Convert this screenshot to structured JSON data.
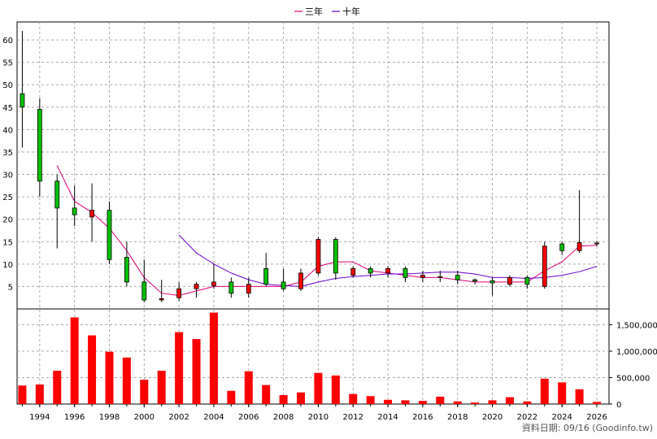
{
  "chart_data": {
    "type": "candlestick",
    "legend": [
      {
        "label": "三年",
        "color": "#e0007a"
      },
      {
        "label": "十年",
        "color": "#6a00d0"
      }
    ],
    "price_axis": {
      "ylim": [
        0,
        64
      ],
      "ticks": [
        5,
        10,
        15,
        20,
        25,
        30,
        35,
        40,
        45,
        50,
        55,
        60
      ]
    },
    "volume_axis": {
      "ylim": [
        0,
        1800000
      ],
      "ticks": [
        0,
        500000,
        1000000,
        1500000
      ],
      "tick_labels": [
        "0",
        "500,000",
        "1,000,000",
        "1,500,000"
      ]
    },
    "x_axis": {
      "range": [
        1992.7,
        2026.7
      ],
      "ticks": [
        1994,
        1996,
        1998,
        2000,
        2002,
        2004,
        2006,
        2008,
        2010,
        2012,
        2014,
        2016,
        2018,
        2020,
        2022,
        2024,
        2026
      ]
    },
    "up_color": "#ff0000",
    "down_color": "#00c000",
    "candles": [
      {
        "year": 1993,
        "open": 48,
        "close": 45,
        "high": 62,
        "low": 36
      },
      {
        "year": 1994,
        "open": 44.5,
        "close": 28.5,
        "high": 47,
        "low": 25
      },
      {
        "year": 1995,
        "open": 28.5,
        "close": 22.5,
        "high": 30,
        "low": 13.5
      },
      {
        "year": 1996,
        "open": 22.5,
        "close": 21,
        "high": 27.5,
        "low": 18.5
      },
      {
        "year": 1997,
        "open": 20.5,
        "close": 22,
        "high": 28,
        "low": 15
      },
      {
        "year": 1998,
        "open": 22,
        "close": 11,
        "high": 24,
        "low": 10
      },
      {
        "year": 1999,
        "open": 11.5,
        "close": 6,
        "high": 15,
        "low": 5
      },
      {
        "year": 2000,
        "open": 6,
        "close": 2,
        "high": 11,
        "low": 1.5
      },
      {
        "year": 2001,
        "open": 2,
        "close": 2.3,
        "high": 6.5,
        "low": 1.5
      },
      {
        "year": 2002,
        "open": 2.5,
        "close": 4.5,
        "high": 6,
        "low": 1.8
      },
      {
        "year": 2003,
        "open": 4.5,
        "close": 5.5,
        "high": 6,
        "low": 2.5
      },
      {
        "year": 2004,
        "open": 5.2,
        "close": 6,
        "high": 10,
        "low": 4.5
      },
      {
        "year": 2005,
        "open": 6,
        "close": 3.5,
        "high": 7,
        "low": 2.5
      },
      {
        "year": 2006,
        "open": 3.5,
        "close": 5.5,
        "high": 7,
        "low": 2.5
      },
      {
        "year": 2007,
        "open": 9,
        "close": 5.5,
        "high": 12.5,
        "low": 5
      },
      {
        "year": 2008,
        "open": 6,
        "close": 4.5,
        "high": 9,
        "low": 4
      },
      {
        "year": 2009,
        "open": 4.5,
        "close": 8,
        "high": 9,
        "low": 4
      },
      {
        "year": 2010,
        "open": 8,
        "close": 15.5,
        "high": 16,
        "low": 7.5
      },
      {
        "year": 2011,
        "open": 15.5,
        "close": 8,
        "high": 16,
        "low": 6.5
      },
      {
        "year": 2012,
        "open": 7.5,
        "close": 9,
        "high": 9.5,
        "low": 7
      },
      {
        "year": 2013,
        "open": 9,
        "close": 8,
        "high": 9.5,
        "low": 7
      },
      {
        "year": 2014,
        "open": 8,
        "close": 9,
        "high": 9.5,
        "low": 7
      },
      {
        "year": 2015,
        "open": 9,
        "close": 7,
        "high": 9.5,
        "low": 6
      },
      {
        "year": 2016,
        "open": 7,
        "close": 7.5,
        "high": 8.5,
        "low": 6
      },
      {
        "year": 2017,
        "open": 7,
        "close": 7.2,
        "high": 8.5,
        "low": 6
      },
      {
        "year": 2018,
        "open": 7.5,
        "close": 6.5,
        "high": 8.5,
        "low": 5.5
      },
      {
        "year": 2019,
        "open": 6.5,
        "close": 6.2,
        "high": 6.8,
        "low": 5.5
      },
      {
        "year": 2020,
        "open": 6.3,
        "close": 5.8,
        "high": 7,
        "low": 3
      },
      {
        "year": 2021,
        "open": 5.5,
        "close": 7,
        "high": 7.5,
        "low": 5
      },
      {
        "year": 2022,
        "open": 7,
        "close": 5.5,
        "high": 7.5,
        "low": 4.5
      },
      {
        "year": 2023,
        "open": 5,
        "close": 14,
        "high": 15,
        "low": 4.5
      },
      {
        "year": 2024,
        "open": 14.5,
        "close": 13,
        "high": 15,
        "low": 12
      },
      {
        "year": 2025,
        "open": 13,
        "close": 14.8,
        "high": 26.5,
        "low": 12.5
      },
      {
        "year": 2026,
        "open": 14.5,
        "close": 14.7,
        "high": 15.2,
        "low": 14
      }
    ],
    "volume": [
      {
        "year": 1993,
        "value": 350000
      },
      {
        "year": 1994,
        "value": 370000
      },
      {
        "year": 1995,
        "value": 630000
      },
      {
        "year": 1996,
        "value": 1640000
      },
      {
        "year": 1997,
        "value": 1300000
      },
      {
        "year": 1998,
        "value": 990000
      },
      {
        "year": 1999,
        "value": 880000
      },
      {
        "year": 2000,
        "value": 460000
      },
      {
        "year": 2001,
        "value": 630000
      },
      {
        "year": 2002,
        "value": 1360000
      },
      {
        "year": 2003,
        "value": 1230000
      },
      {
        "year": 2004,
        "value": 1730000
      },
      {
        "year": 2005,
        "value": 250000
      },
      {
        "year": 2006,
        "value": 620000
      },
      {
        "year": 2007,
        "value": 360000
      },
      {
        "year": 2008,
        "value": 170000
      },
      {
        "year": 2009,
        "value": 220000
      },
      {
        "year": 2010,
        "value": 590000
      },
      {
        "year": 2011,
        "value": 540000
      },
      {
        "year": 2012,
        "value": 190000
      },
      {
        "year": 2013,
        "value": 150000
      },
      {
        "year": 2014,
        "value": 80000
      },
      {
        "year": 2015,
        "value": 70000
      },
      {
        "year": 2016,
        "value": 60000
      },
      {
        "year": 2017,
        "value": 140000
      },
      {
        "year": 2018,
        "value": 50000
      },
      {
        "year": 2019,
        "value": 30000
      },
      {
        "year": 2020,
        "value": 70000
      },
      {
        "year": 2021,
        "value": 130000
      },
      {
        "year": 2022,
        "value": 50000
      },
      {
        "year": 2023,
        "value": 480000
      },
      {
        "year": 2024,
        "value": 410000
      },
      {
        "year": 2025,
        "value": 280000
      },
      {
        "year": 2026,
        "value": 40000
      }
    ],
    "ma3": [
      {
        "year": 1995,
        "value": 32
      },
      {
        "year": 1996,
        "value": 24
      },
      {
        "year": 1997,
        "value": 21.5
      },
      {
        "year": 1998,
        "value": 18
      },
      {
        "year": 1999,
        "value": 13
      },
      {
        "year": 2000,
        "value": 7
      },
      {
        "year": 2001,
        "value": 3.5
      },
      {
        "year": 2002,
        "value": 3
      },
      {
        "year": 2003,
        "value": 4
      },
      {
        "year": 2004,
        "value": 5
      },
      {
        "year": 2005,
        "value": 5
      },
      {
        "year": 2006,
        "value": 5
      },
      {
        "year": 2007,
        "value": 5
      },
      {
        "year": 2008,
        "value": 5
      },
      {
        "year": 2009,
        "value": 6
      },
      {
        "year": 2010,
        "value": 9.5
      },
      {
        "year": 2011,
        "value": 10.5
      },
      {
        "year": 2012,
        "value": 10.5
      },
      {
        "year": 2013,
        "value": 8.5
      },
      {
        "year": 2014,
        "value": 8
      },
      {
        "year": 2015,
        "value": 7.5
      },
      {
        "year": 2016,
        "value": 7
      },
      {
        "year": 2017,
        "value": 7
      },
      {
        "year": 2018,
        "value": 6.5
      },
      {
        "year": 2019,
        "value": 6
      },
      {
        "year": 2020,
        "value": 6
      },
      {
        "year": 2021,
        "value": 6
      },
      {
        "year": 2022,
        "value": 6
      },
      {
        "year": 2023,
        "value": 8.5
      },
      {
        "year": 2024,
        "value": 10.5
      },
      {
        "year": 2025,
        "value": 14
      },
      {
        "year": 2026,
        "value": 14.2
      }
    ],
    "ma10": [
      {
        "year": 2002,
        "value": 16.5
      },
      {
        "year": 2003,
        "value": 12.5
      },
      {
        "year": 2004,
        "value": 10
      },
      {
        "year": 2005,
        "value": 8
      },
      {
        "year": 2006,
        "value": 6.5
      },
      {
        "year": 2007,
        "value": 5.5
      },
      {
        "year": 2008,
        "value": 5.2
      },
      {
        "year": 2009,
        "value": 5
      },
      {
        "year": 2010,
        "value": 6
      },
      {
        "year": 2011,
        "value": 6.8
      },
      {
        "year": 2012,
        "value": 7.2
      },
      {
        "year": 2013,
        "value": 7.5
      },
      {
        "year": 2014,
        "value": 7.8
      },
      {
        "year": 2015,
        "value": 7.8
      },
      {
        "year": 2016,
        "value": 8
      },
      {
        "year": 2017,
        "value": 8.2
      },
      {
        "year": 2018,
        "value": 8.2
      },
      {
        "year": 2019,
        "value": 7.8
      },
      {
        "year": 2020,
        "value": 7
      },
      {
        "year": 2021,
        "value": 7
      },
      {
        "year": 2022,
        "value": 6.8
      },
      {
        "year": 2023,
        "value": 7
      },
      {
        "year": 2024,
        "value": 7.5
      },
      {
        "year": 2025,
        "value": 8.3
      },
      {
        "year": 2026,
        "value": 9.5
      }
    ],
    "credit": "資料日期: 09/16 (Goodinfo.tw)"
  }
}
